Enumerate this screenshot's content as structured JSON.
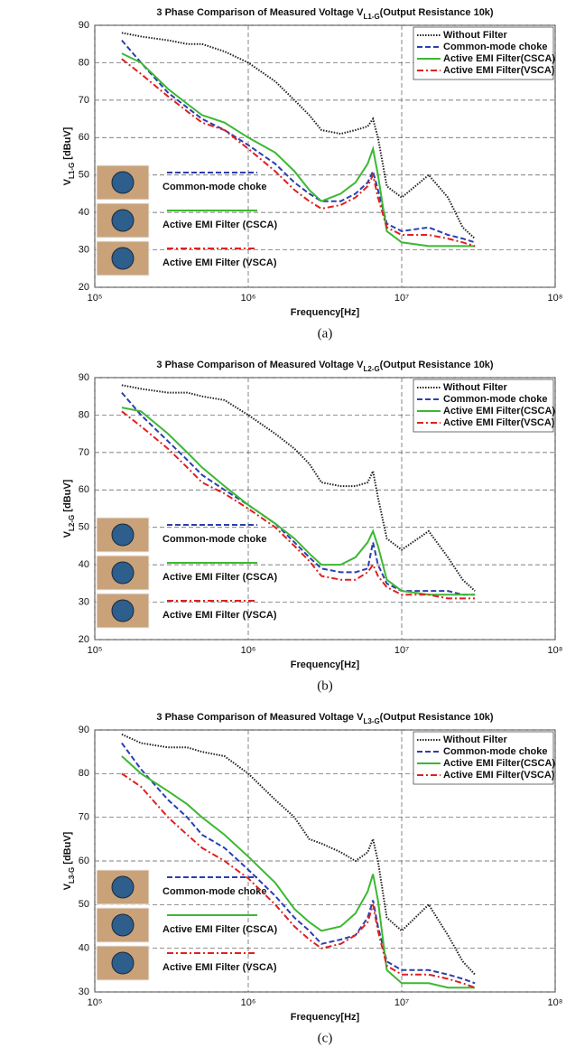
{
  "chart_data": [
    {
      "type": "line",
      "title": [
        "3 Phase Comparison of Measured Voltage V",
        "L1-G",
        "(Output Resistance 10k)"
      ],
      "ylabel": [
        "V",
        "L1-G",
        " [dBuV]"
      ],
      "xlabel": "Frequency[Hz]",
      "caption": "(a)",
      "xscale": "log",
      "grid": true,
      "legend": "upper right",
      "xlim": [
        100000,
        100000000
      ],
      "ylim": [
        20,
        90
      ],
      "xticks": [
        {
          "value": 100000,
          "label": "10⁵"
        },
        {
          "value": 1000000,
          "label": "10⁶"
        },
        {
          "value": 10000000,
          "label": "10⁷"
        },
        {
          "value": 100000000,
          "label": "10⁸"
        }
      ],
      "yticks": [
        20,
        30,
        40,
        50,
        60,
        70,
        80,
        90
      ],
      "x": [
        150000,
        200000,
        300000,
        400000,
        500000,
        700000,
        1000000,
        1500000,
        2000000,
        2500000,
        3000000,
        4000000,
        5000000,
        6000000,
        6500000,
        7000000,
        8000000,
        10000000,
        15000000,
        20000000,
        25000000,
        30000000
      ],
      "series": [
        {
          "name": "Without Filter",
          "color": "#222222",
          "dash": "dotted",
          "values": [
            88,
            87,
            86,
            85,
            85,
            83,
            80,
            75,
            70,
            66,
            62,
            61,
            62,
            63,
            65,
            60,
            47,
            44,
            50,
            44,
            36,
            33
          ]
        },
        {
          "name": "Common-mode choke",
          "color": "#2b3fb0",
          "dash": "dashed",
          "values": [
            86,
            80,
            72,
            68,
            65,
            62,
            58,
            53,
            48,
            45,
            43,
            43,
            45,
            48,
            51,
            46,
            37,
            35,
            36,
            34,
            33,
            32
          ]
        },
        {
          "name": "Active EMI Filter(CSCA)",
          "color": "#3cb832",
          "dash": "solid",
          "values": [
            82.5,
            80,
            73,
            69,
            66,
            64,
            60,
            56,
            51,
            46,
            43,
            45,
            48,
            53,
            57,
            50,
            35,
            32,
            31,
            31,
            31,
            31
          ]
        },
        {
          "name": "Active EMI Filter(VSCA)",
          "color": "#e02020",
          "dash": "dashdot",
          "values": [
            81,
            77,
            71,
            67,
            64,
            62,
            57,
            51,
            46,
            43,
            41,
            42,
            44,
            47,
            50,
            44,
            36,
            34,
            34,
            33,
            32,
            31
          ]
        }
      ],
      "inset_labels": [
        "Common-mode choke",
        "Active EMI Filter (CSCA)",
        "Active EMI Filter (VSCA)"
      ]
    },
    {
      "type": "line",
      "title": [
        "3 Phase Comparison of Measured Voltage V",
        "L2-G",
        "(Output Resistance 10k)"
      ],
      "ylabel": [
        "V",
        "L2-G",
        " [dBuV]"
      ],
      "xlabel": "Frequency[Hz]",
      "caption": "(b)",
      "xscale": "log",
      "grid": true,
      "legend": "upper right",
      "xlim": [
        100000,
        100000000
      ],
      "ylim": [
        20,
        90
      ],
      "xticks": [
        {
          "value": 100000,
          "label": "10⁵"
        },
        {
          "value": 1000000,
          "label": "10⁶"
        },
        {
          "value": 10000000,
          "label": "10⁷"
        },
        {
          "value": 100000000,
          "label": "10⁸"
        }
      ],
      "yticks": [
        20,
        30,
        40,
        50,
        60,
        70,
        80,
        90
      ],
      "x": [
        150000,
        200000,
        300000,
        400000,
        500000,
        700000,
        1000000,
        1500000,
        2000000,
        2500000,
        3000000,
        4000000,
        5000000,
        6000000,
        6500000,
        7000000,
        8000000,
        10000000,
        15000000,
        20000000,
        25000000,
        30000000
      ],
      "series": [
        {
          "name": "Without Filter",
          "color": "#222222",
          "dash": "dotted",
          "values": [
            88,
            87,
            86,
            86,
            85,
            84,
            80,
            75,
            71,
            67,
            62,
            61,
            61,
            62,
            65,
            58,
            47,
            44,
            49,
            42,
            36,
            33
          ]
        },
        {
          "name": "Common-mode choke",
          "color": "#2b3fb0",
          "dash": "dashed",
          "values": [
            86,
            80,
            73,
            68,
            64,
            60,
            56,
            51,
            46,
            42,
            39,
            38,
            38,
            39,
            46,
            40,
            35,
            33,
            33,
            33,
            32,
            32
          ]
        },
        {
          "name": "Active EMI Filter(CSCA)",
          "color": "#3cb832",
          "dash": "solid",
          "values": [
            82,
            81,
            75,
            70,
            66,
            61,
            56,
            51,
            47,
            43,
            40,
            40,
            42,
            46,
            49,
            45,
            36,
            33,
            32,
            32,
            32,
            32
          ]
        },
        {
          "name": "Active EMI Filter(VSCA)",
          "color": "#e02020",
          "dash": "dashdot",
          "values": [
            81,
            77,
            71,
            66,
            62,
            59,
            55,
            50,
            45,
            41,
            37,
            36,
            36,
            38,
            40,
            37,
            34,
            32,
            32,
            31,
            31,
            31
          ]
        }
      ],
      "inset_labels": [
        "Common-mode choke",
        "Active EMI Filter (CSCA)",
        "Active EMI Filter (VSCA)"
      ]
    },
    {
      "type": "line",
      "title": [
        "3 Phase Comparison of Measured Voltage V",
        "L3-G",
        "(Output Resistance 10k)"
      ],
      "ylabel": [
        "V",
        "L3-G",
        " [dBuV]"
      ],
      "xlabel": "Frequency[Hz]",
      "caption": "(c)",
      "xscale": "log",
      "grid": true,
      "legend": "upper right",
      "xlim": [
        100000,
        100000000
      ],
      "ylim": [
        30,
        90
      ],
      "xticks": [
        {
          "value": 100000,
          "label": "10⁵"
        },
        {
          "value": 1000000,
          "label": "10⁶"
        },
        {
          "value": 10000000,
          "label": "10⁷"
        },
        {
          "value": 100000000,
          "label": "10⁸"
        }
      ],
      "yticks": [
        30,
        40,
        50,
        60,
        70,
        80,
        90
      ],
      "x": [
        150000,
        200000,
        300000,
        400000,
        500000,
        700000,
        1000000,
        1500000,
        2000000,
        2500000,
        3000000,
        4000000,
        5000000,
        6000000,
        6500000,
        7000000,
        8000000,
        10000000,
        15000000,
        20000000,
        25000000,
        30000000
      ],
      "series": [
        {
          "name": "Without Filter",
          "color": "#222222",
          "dash": "dotted",
          "values": [
            89,
            87,
            86,
            86,
            85,
            84,
            80,
            74,
            70,
            65,
            64,
            62,
            60,
            62,
            65,
            60,
            47,
            44,
            50,
            43,
            37,
            34
          ]
        },
        {
          "name": "Common-mode choke",
          "color": "#2b3fb0",
          "dash": "dashed",
          "values": [
            87,
            81,
            74,
            70,
            66,
            63,
            58,
            52,
            47,
            44,
            41,
            42,
            43,
            47,
            51,
            45,
            37,
            35,
            35,
            34,
            33,
            32
          ]
        },
        {
          "name": "Active EMI Filter(CSCA)",
          "color": "#3cb832",
          "dash": "solid",
          "values": [
            84,
            80,
            76,
            73,
            70,
            66,
            61,
            55,
            49,
            46,
            44,
            45,
            48,
            53,
            57,
            51,
            35,
            32,
            32,
            31,
            31,
            31
          ]
        },
        {
          "name": "Active EMI Filter(VSCA)",
          "color": "#e02020",
          "dash": "dashdot",
          "values": [
            80,
            77,
            70,
            66,
            63,
            60,
            56,
            50,
            45,
            42,
            40,
            41,
            43,
            46,
            50,
            44,
            36,
            34,
            34,
            33,
            32,
            31
          ]
        }
      ],
      "inset_labels": [
        "Common-mode choke",
        "Active EMI Filter (CSCA)",
        "Active EMI Filter (VSCA)"
      ]
    }
  ]
}
